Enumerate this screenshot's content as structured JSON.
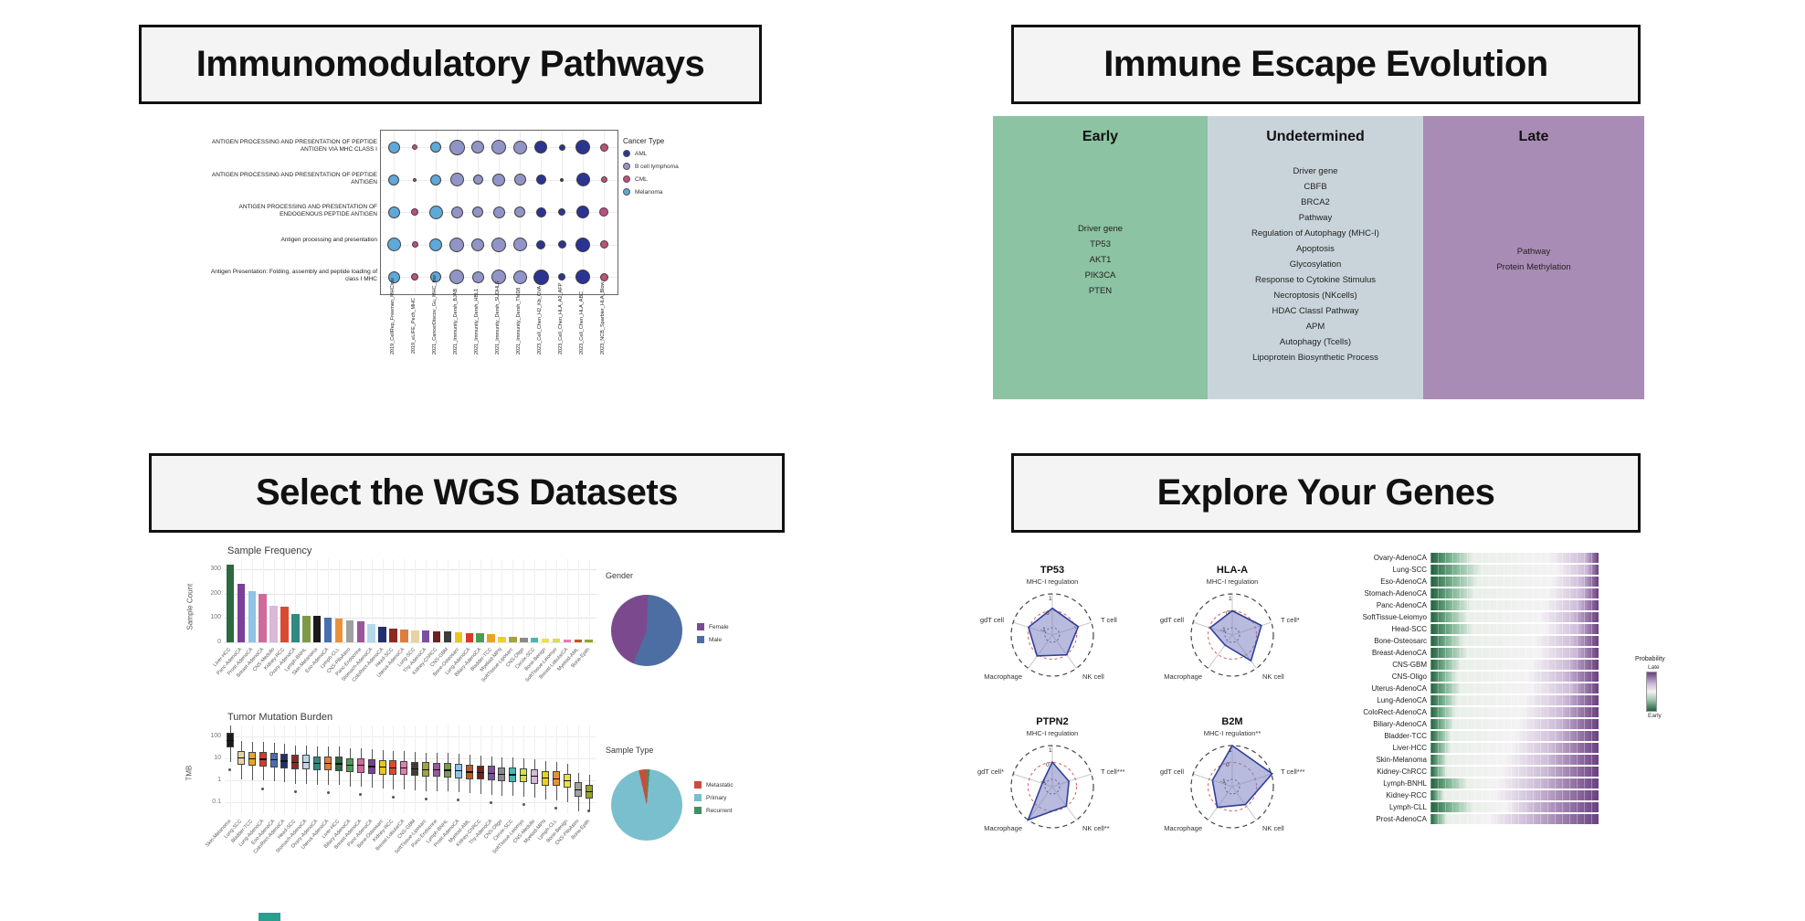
{
  "headers": {
    "panel1": "Immunomodulatory Pathways",
    "panel2": "Immune Escape Evolution",
    "panel3": "Select the WGS Datasets",
    "panel4": "Explore Your Genes"
  },
  "chart_data": [
    {
      "name": "immunomodulatory_dotplot",
      "type": "scatter",
      "pathways": [
        "ANTIGEN PROCESSING AND PRESENTATION OF PEPTIDE ANTIGEN VIA MHC CLASS I",
        "ANTIGEN PROCESSING AND PRESENTATION OF PEPTIDE ANTIGEN",
        "ANTIGEN PROCESSING AND PRESENTATION OF ENDOGENOUS PEPTIDE ANTIGEN",
        "Antigen processing and presentation",
        "Antigen Presentation: Folding, assembly and peptide loading of class I MHC"
      ],
      "datasets": [
        "2019_CellRep_Freeman_MHClow",
        "2019_eLIFE_Pech_MHC",
        "2021_CancerDiscov_Gu_MHC_low",
        "2021_Immunity_Dersh_BJAB",
        "2021_Immunity_Dersh_HBL1",
        "2021_Immunity_Dersh_SUDHLS",
        "2021_Immunity_Dersh_TMD8",
        "2023_Cell_Chen_H2_Kb_OVA",
        "2023_Cell_Chen_HLA_A2_AFP",
        "2023_Cell_Chen_HLA_ABC",
        "2023_NCB_Sparbier_HLA_Blow"
      ],
      "legend_title": "Cancer Type",
      "cancer_types": [
        {
          "label": "AML",
          "color": "#2b3490"
        },
        {
          "label": "B cell lymphoma",
          "color": "#9094c6"
        },
        {
          "label": "CML",
          "color": "#bf4f7d"
        },
        {
          "label": "Melanoma",
          "color": "#5fa8d8"
        }
      ],
      "dataset_cancer_index": [
        3,
        2,
        3,
        1,
        1,
        1,
        1,
        0,
        0,
        0,
        2
      ],
      "dot_diameters": [
        [
          13,
          6,
          12,
          17,
          14,
          16,
          15,
          14,
          7,
          16,
          9
        ],
        [
          12,
          4,
          12,
          15,
          11,
          14,
          13,
          11,
          4,
          15,
          7
        ],
        [
          13,
          8,
          15,
          13,
          12,
          13,
          12,
          11,
          8,
          14,
          10
        ],
        [
          15,
          7,
          14,
          16,
          14,
          16,
          15,
          10,
          9,
          16,
          9
        ],
        [
          13,
          8,
          12,
          16,
          13,
          16,
          15,
          17,
          8,
          16,
          9
        ]
      ]
    },
    {
      "name": "immune_escape_evolution",
      "type": "table",
      "columns": [
        {
          "label": "Early",
          "color": "#8cc3a2",
          "items": [
            "Driver gene",
            "TP53",
            "AKT1",
            "PIK3CA",
            "PTEN"
          ]
        },
        {
          "label": "Undetermined",
          "color": "#c9d4da",
          "items": [
            "Driver gene",
            "CBFB",
            "BRCA2",
            "Pathway",
            "Regulation of Autophagy (MHC-I)",
            "Apoptosis",
            "Glycosylation",
            "Response to Cytokine Stimulus",
            "Necroptosis (NKcells)",
            "HDAC ClassI Pathway",
            "APM",
            "Autophagy (Tcells)",
            "Lipoprotein Biosynthetic Process"
          ]
        },
        {
          "label": "Late",
          "color": "#a98cb5",
          "items": [
            "Pathway",
            "Protein Methylation"
          ]
        }
      ]
    },
    {
      "name": "sample_frequency",
      "type": "bar",
      "title": "Sample Frequency",
      "ylabel": "Sample Count",
      "yticks": [
        0,
        100,
        200,
        300
      ],
      "ylim": [
        0,
        330
      ],
      "categories": [
        "Liver-HCC",
        "Panc-AdenoCA",
        "Prost-AdenoCA",
        "Breast-AdenoCA",
        "CNS-Medullo",
        "Kidney-RCC",
        "Ovary-AdenoCA",
        "Lymph-BNHL",
        "Skin-Melanoma",
        "Eso-AdenoCA",
        "Lymph-CLL",
        "CNS-PiloAstro",
        "Panc-Endocrine",
        "Stomach-AdenoCA",
        "ColoRect-AdenoCA",
        "Head-SCC",
        "Uterus-AdenoCA",
        "Lung-SCC",
        "Thy-AdenoCA",
        "Kidney-ChRCC",
        "CNS-GBM",
        "Bone-Osteosarc",
        "Lung-AdenoCA",
        "Biliary-AdenoCA",
        "Bladder-TCC",
        "Myeloid-MPN",
        "SoftTissue-Liposarc",
        "CNS-Oligo",
        "Cervix-SCC",
        "Bone-Benign",
        "SoftTissue-Leiomyo",
        "Breast-LobularCA",
        "Myeloid-AML",
        "Bone-Epith"
      ],
      "values": [
        320,
        240,
        211,
        198,
        148,
        145,
        115,
        108,
        107,
        100,
        96,
        90,
        87,
        75,
        62,
        58,
        52,
        48,
        48,
        46,
        44,
        40,
        37,
        37,
        34,
        23,
        23,
        18,
        18,
        16,
        14,
        13,
        12,
        11
      ],
      "colors": [
        "#2d6a3f",
        "#7b3f98",
        "#8fc3e8",
        "#d06a9b",
        "#d9b8d9",
        "#d84b32",
        "#2f8a80",
        "#7e9a47",
        "#1a1a1a",
        "#4a6fb0",
        "#e8913d",
        "#a0a0a0",
        "#98589b",
        "#b5d9e8",
        "#22306e",
        "#8c2a21",
        "#e07d3a",
        "#e6d3a3",
        "#7c50a0",
        "#6e2222",
        "#3c3c3c",
        "#eac61f",
        "#d8392b",
        "#4a9e52",
        "#e8a51f",
        "#ead31f",
        "#a3a33c",
        "#8a8a8a",
        "#49b8b0",
        "#eae23d",
        "#d6e04a",
        "#e87ab5",
        "#c2571f",
        "#95a32b"
      ]
    },
    {
      "name": "gender",
      "type": "pie",
      "title": "Gender",
      "slices": [
        {
          "label": "Female",
          "value": 45,
          "color": "#7b4a8e"
        },
        {
          "label": "Male",
          "value": 55,
          "color": "#4d6ea3"
        }
      ]
    },
    {
      "name": "tumor_mutation_burden",
      "type": "boxplot",
      "title": "Tumor Mutation Burden",
      "ylabel": "TMB",
      "yticks": [
        "100",
        "10",
        "1",
        "0.1"
      ],
      "categories": [
        "Skin-Melanoma",
        "Lung-SCC",
        "Bladder-TCC",
        "Lung-AdenoCA",
        "Eso-AdenoCA",
        "ColoRect-AdenoCA",
        "Head-SCC",
        "Stomach-AdenoCA",
        "Ovary-AdenoCA",
        "Uterus-AdenoCA",
        "Liver-HCC",
        "Biliary-AdenoCA",
        "Breast-AdenoCA",
        "Panc-AdenoCA",
        "Bone-Osteosarc",
        "Kidney-RCC",
        "Breast-LobularCA",
        "CNS-GBM",
        "SoftTissue-Liposarc",
        "Panc-Endocrine",
        "Lymph-BNHL",
        "Prost-AdenoCA",
        "Myeloid-AML",
        "Kidney-ChRCC",
        "Thy-AdenoCA",
        "CNS-Oligo",
        "Cervix-SCC",
        "SoftTissue-Leiomyo",
        "CNS-Medullo",
        "Myeloid-MPN",
        "Lymph-CLL",
        "Bone-Benign",
        "CNS-PiloAstro",
        "Bone-Epith"
      ],
      "median_log10": [
        1.85,
        1.05,
        1.0,
        0.98,
        0.95,
        0.9,
        0.85,
        0.85,
        0.8,
        0.8,
        0.78,
        0.72,
        0.7,
        0.65,
        0.62,
        0.6,
        0.58,
        0.55,
        0.52,
        0.5,
        0.48,
        0.45,
        0.4,
        0.38,
        0.35,
        0.3,
        0.28,
        0.25,
        0.2,
        0.12,
        0.1,
        0.0,
        -0.4,
        -0.5
      ]
    },
    {
      "name": "sample_type",
      "type": "pie",
      "title": "Sample Type",
      "slices": [
        {
          "label": "Metastatic",
          "value": 3,
          "color": "#c84e3b"
        },
        {
          "label": "Primary",
          "value": 96,
          "color": "#79bfcd"
        },
        {
          "label": "Recurrent",
          "value": 1,
          "color": "#3f9160"
        }
      ]
    },
    {
      "name": "gene_radars",
      "type": "radar",
      "tick_labels": [
        "1",
        "0",
        "-1"
      ],
      "charts": [
        {
          "title": "TP53",
          "axes": [
            "MHC-I regulation",
            "T cell",
            "NK cell",
            "Macrophage",
            "gdT cell"
          ],
          "values": [
            0.15,
            0.18,
            0.02,
            0.1,
            0.05
          ]
        },
        {
          "title": "HLA-A",
          "axes": [
            "MHC-I regulation",
            "T cell*",
            "NK cell",
            "Macrophage",
            "gdT cell"
          ],
          "values": [
            0.0,
            0.38,
            0.45,
            -0.7,
            -0.05
          ]
        },
        {
          "title": "PTPN2",
          "axes": [
            "MHC-I regulation",
            "T cell***",
            "NK cell**",
            "Macrophage",
            "gdT cell*"
          ],
          "values": [
            0.02,
            -0.4,
            -0.02,
            1.0,
            -0.8
          ]
        },
        {
          "title": "B2M",
          "axes": [
            "MHC-I regulation**",
            "T cell***",
            "NK cell",
            "Macrophage",
            "gdT cell"
          ],
          "values": [
            1.0,
            1.05,
            -0.12,
            0.08,
            -0.2
          ]
        }
      ]
    },
    {
      "name": "timing_probability",
      "type": "heatmap",
      "legend_title": "Probability",
      "legend_top": "Late",
      "legend_bottom": "Early",
      "color_early": "#20603d",
      "color_late": "#6a4080",
      "rows": [
        {
          "label": "Ovary-AdenoCA",
          "stops": [
            25,
            70,
            92
          ]
        },
        {
          "label": "Lung-SCC",
          "stops": [
            30,
            75,
            93
          ]
        },
        {
          "label": "Eso-AdenoCA",
          "stops": [
            28,
            72,
            90
          ]
        },
        {
          "label": "Stomach-AdenoCA",
          "stops": [
            26,
            70,
            90
          ]
        },
        {
          "label": "Panc-AdenoCA",
          "stops": [
            24,
            68,
            88
          ]
        },
        {
          "label": "SoftTissue-Leiomyo",
          "stops": [
            22,
            65,
            85
          ]
        },
        {
          "label": "Head-SCC",
          "stops": [
            25,
            68,
            88
          ]
        },
        {
          "label": "Bone-Osteosarc",
          "stops": [
            20,
            62,
            85
          ]
        },
        {
          "label": "Breast-AdenoCA",
          "stops": [
            22,
            64,
            86
          ]
        },
        {
          "label": "CNS-GBM",
          "stops": [
            18,
            60,
            82
          ]
        },
        {
          "label": "CNS-Oligo",
          "stops": [
            16,
            58,
            80
          ]
        },
        {
          "label": "Uterus-AdenoCA",
          "stops": [
            18,
            60,
            84
          ]
        },
        {
          "label": "Lung-AdenoCA",
          "stops": [
            16,
            56,
            80
          ]
        },
        {
          "label": "ColoRect-AdenoCA",
          "stops": [
            15,
            55,
            78
          ]
        },
        {
          "label": "Biliary-AdenoCA",
          "stops": [
            14,
            52,
            76
          ]
        },
        {
          "label": "Bladder-TCC",
          "stops": [
            12,
            50,
            75
          ]
        },
        {
          "label": "Liver-HCC",
          "stops": [
            12,
            48,
            72
          ]
        },
        {
          "label": "Skin-Melanoma",
          "stops": [
            10,
            45,
            70
          ]
        },
        {
          "label": "Kidney-ChRCC",
          "stops": [
            10,
            42,
            68
          ]
        },
        {
          "label": "Lymph-BNHL",
          "stops": [
            22,
            40,
            65
          ]
        },
        {
          "label": "Kidney-RCC",
          "stops": [
            8,
            38,
            62
          ]
        },
        {
          "label": "Lymph-CLL",
          "stops": [
            25,
            45,
            60
          ]
        },
        {
          "label": "Prost-AdenoCA",
          "stops": [
            10,
            35,
            58
          ]
        }
      ]
    }
  ]
}
